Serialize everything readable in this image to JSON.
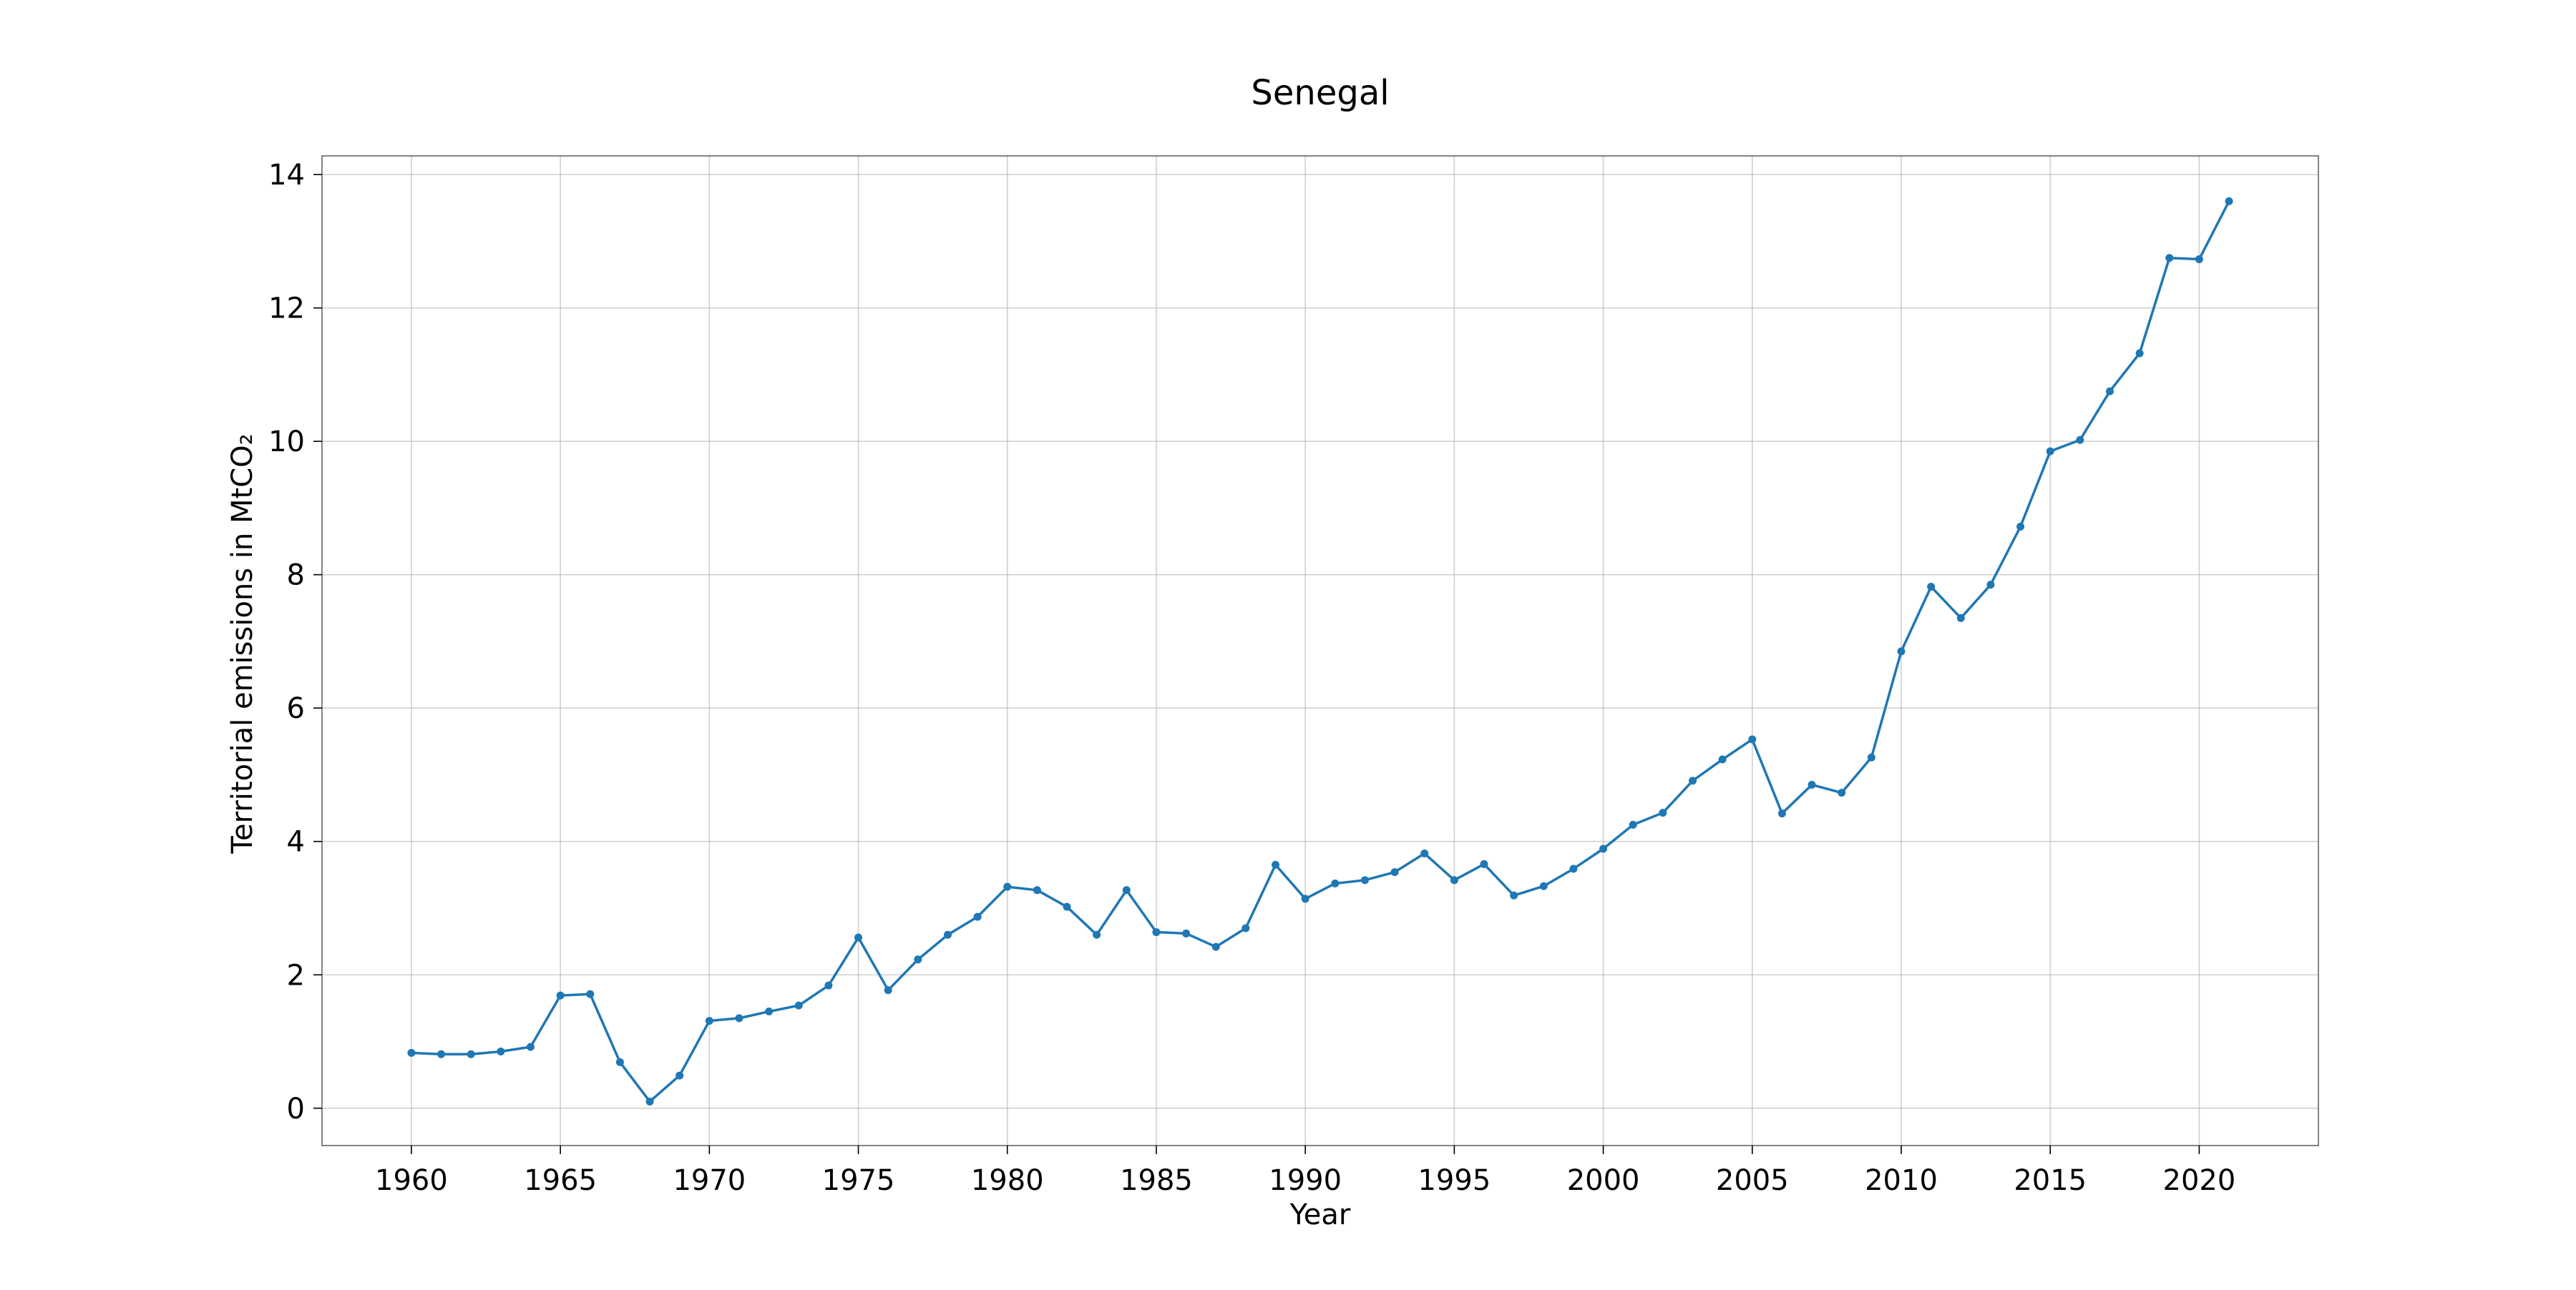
{
  "chart_data": {
    "type": "line",
    "title": "Senegal",
    "xlabel": "Year",
    "ylabel": "Territorial emissions in MtCO₂",
    "xlim": [
      1957,
      2024
    ],
    "ylim": [
      -0.56,
      14.28
    ],
    "xticks": [
      1960,
      1965,
      1970,
      1975,
      1980,
      1985,
      1990,
      1995,
      2000,
      2005,
      2010,
      2015,
      2020
    ],
    "yticks": [
      0,
      2,
      4,
      6,
      8,
      10,
      12,
      14
    ],
    "grid": true,
    "legend": "none",
    "series": [
      {
        "color": "#1f77b4",
        "x": [
          1960,
          1961,
          1962,
          1963,
          1964,
          1965,
          1966,
          1967,
          1968,
          1969,
          1970,
          1971,
          1972,
          1973,
          1974,
          1975,
          1976,
          1977,
          1978,
          1979,
          1980,
          1981,
          1982,
          1983,
          1984,
          1985,
          1986,
          1987,
          1988,
          1989,
          1990,
          1991,
          1992,
          1993,
          1994,
          1995,
          1996,
          1997,
          1998,
          1999,
          2000,
          2001,
          2002,
          2003,
          2004,
          2005,
          2006,
          2007,
          2008,
          2009,
          2010,
          2011,
          2012,
          2013,
          2014,
          2015,
          2016,
          2017,
          2018,
          2019,
          2020,
          2021
        ],
        "values": [
          0.83,
          0.81,
          0.81,
          0.85,
          0.92,
          1.69,
          1.71,
          0.69,
          0.1,
          0.49,
          1.31,
          1.35,
          1.45,
          1.54,
          1.84,
          2.56,
          1.77,
          2.23,
          2.6,
          2.87,
          3.32,
          3.27,
          3.02,
          2.6,
          3.27,
          2.64,
          2.62,
          2.42,
          2.7,
          3.65,
          3.14,
          3.37,
          3.42,
          3.54,
          3.82,
          3.42,
          3.66,
          3.19,
          3.33,
          3.59,
          3.89,
          4.25,
          4.43,
          4.91,
          5.23,
          5.53,
          4.42,
          4.85,
          4.73,
          5.26,
          6.85,
          7.82,
          7.35,
          7.85,
          8.72,
          9.85,
          10.02,
          10.75,
          11.32,
          12.75,
          12.73,
          13.6
        ]
      }
    ]
  }
}
